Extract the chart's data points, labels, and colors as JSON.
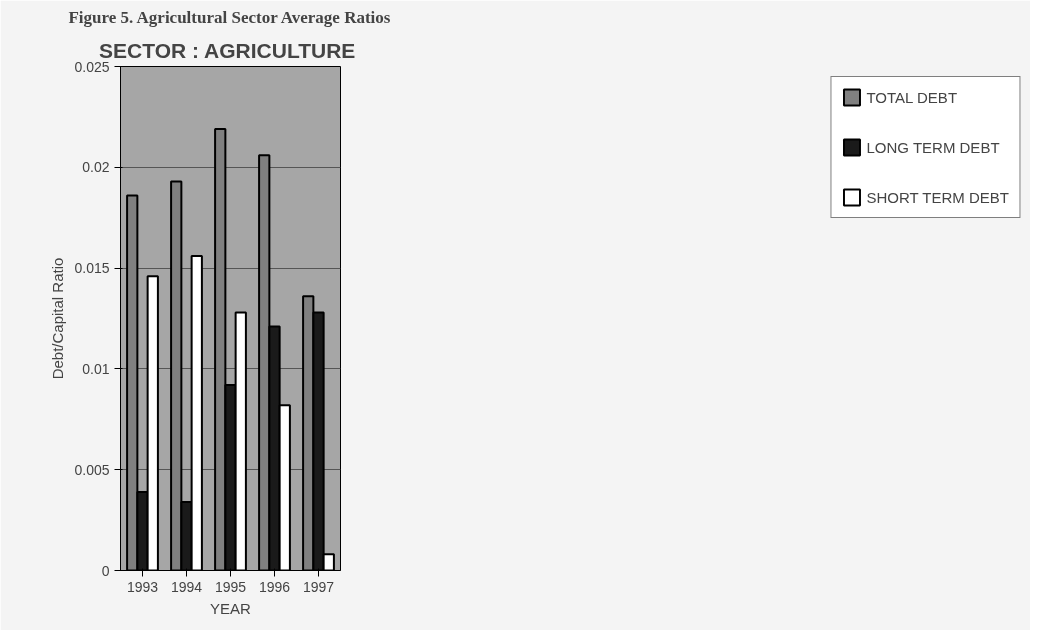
{
  "chart_data": {
    "type": "bar",
    "title": "Figure 5. Agricultural Sector Average Ratios",
    "subtitle": "SECTOR :  AGRICULTURE",
    "xlabel": "YEAR",
    "ylabel": "Debt/Capital Ratio",
    "categories": [
      "1993",
      "1994",
      "1995",
      "1996",
      "1997"
    ],
    "series": [
      {
        "name": "TOTAL DEBT",
        "color": "#808080",
        "values": [
          0.0186,
          0.0193,
          0.0219,
          0.0206,
          0.0136
        ]
      },
      {
        "name": "LONG TERM DEBT",
        "color": "#1a1a1a",
        "values": [
          0.0039,
          0.0034,
          0.0092,
          0.0121,
          0.0128
        ]
      },
      {
        "name": "SHORT TERM DEBT",
        "color": "#ffffff",
        "values": [
          0.0146,
          0.0156,
          0.0128,
          0.0082,
          0.0008
        ]
      }
    ],
    "ylim": [
      0,
      0.025
    ],
    "yticks": [
      0,
      0.005,
      0.01,
      0.015,
      0.02,
      0.025
    ],
    "grid": "y",
    "legend": "right"
  }
}
